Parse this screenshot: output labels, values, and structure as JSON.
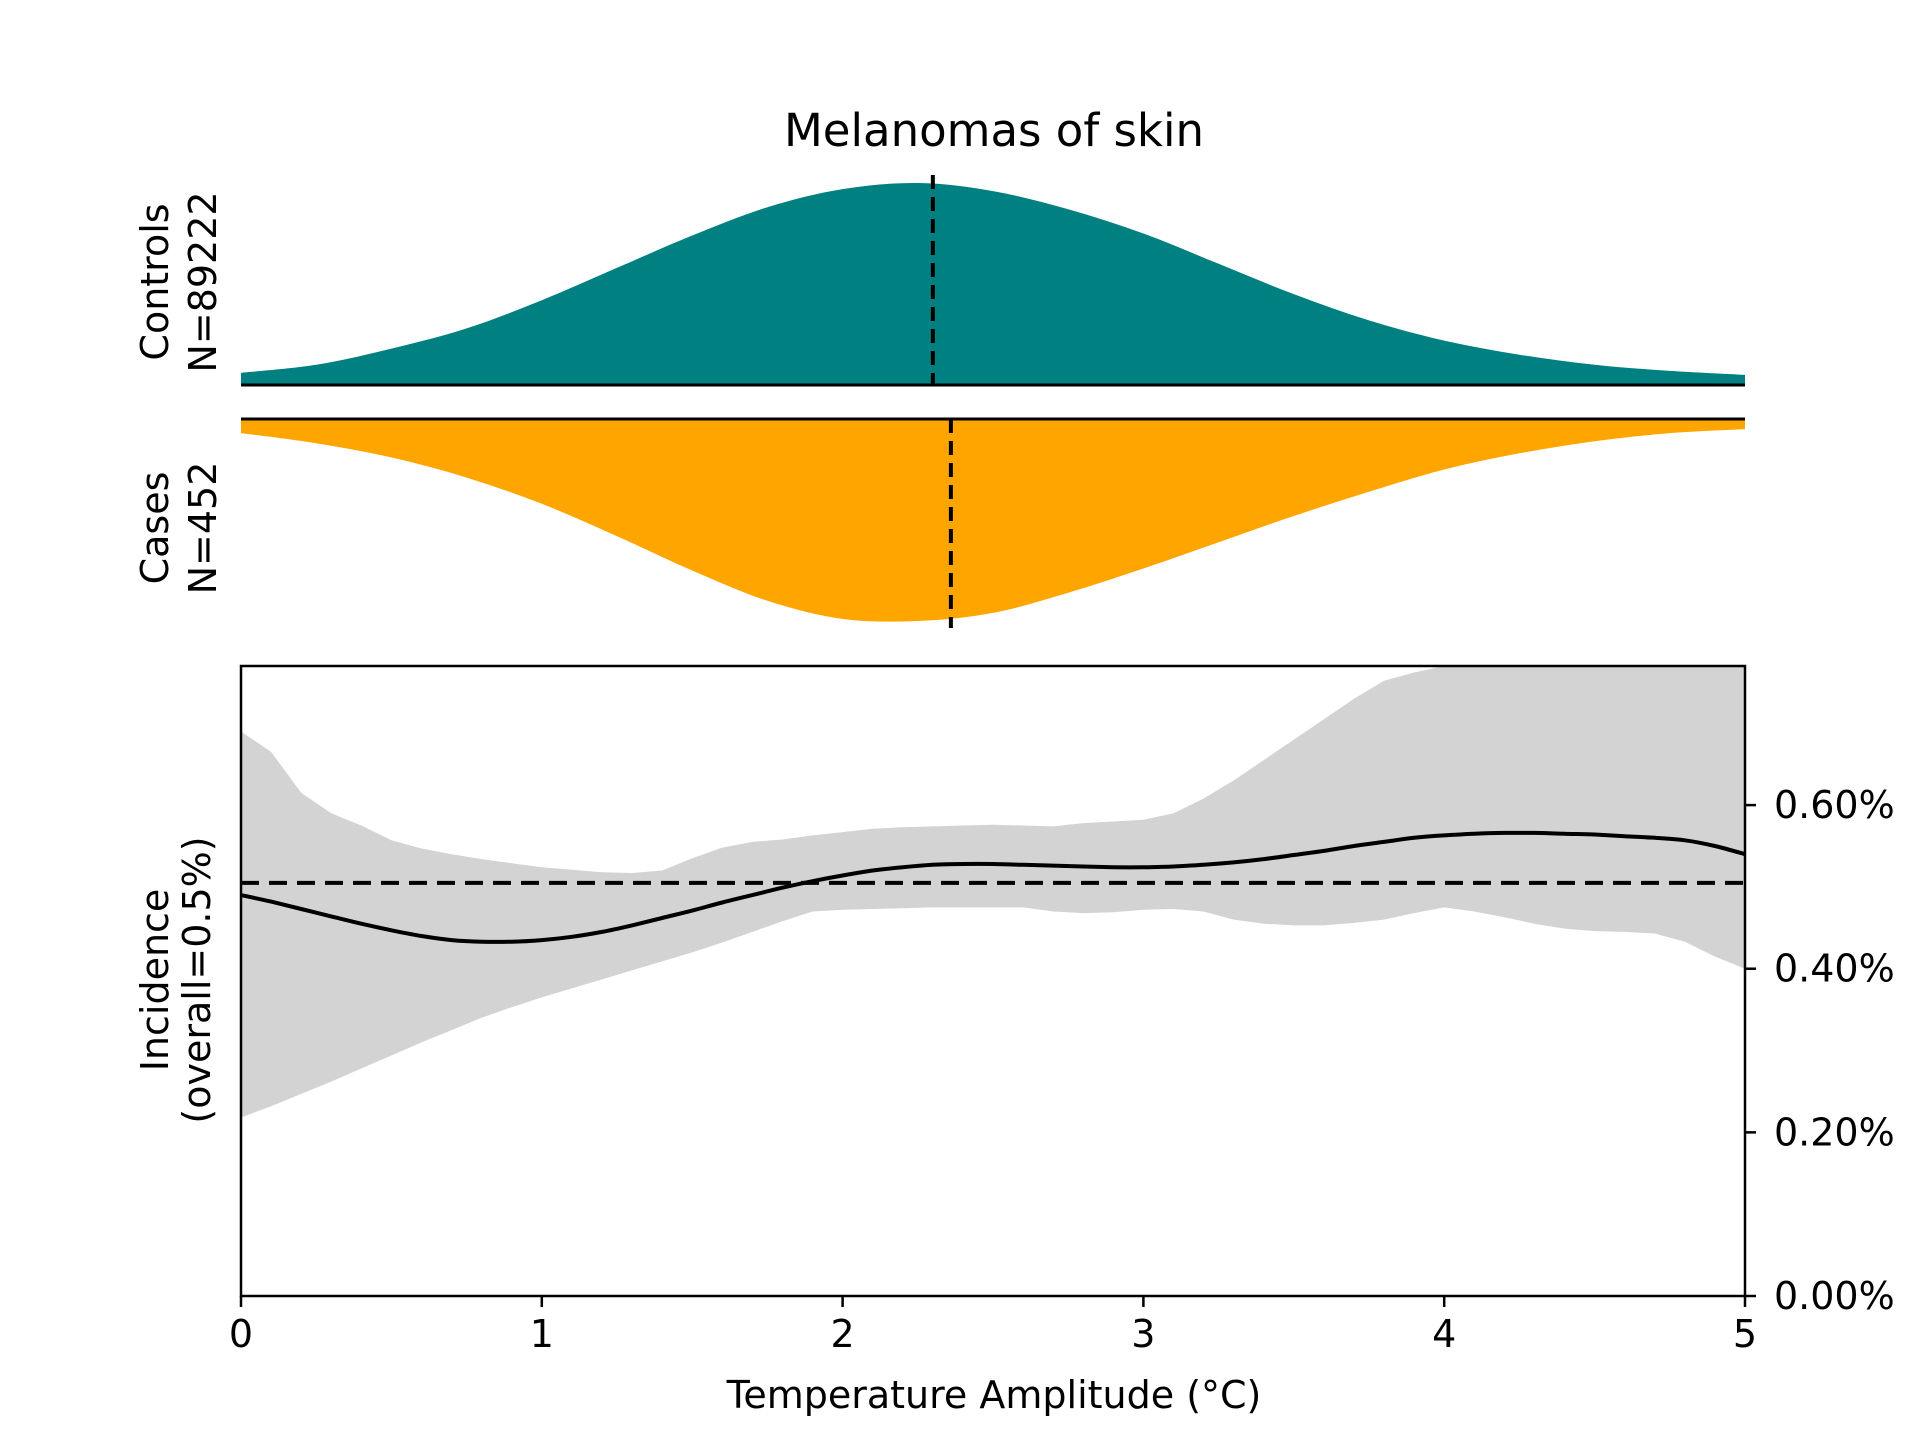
{
  "chart_data": [
    {
      "type": "area",
      "title": "Melanomas of skin",
      "panels": [
        {
          "name": "controls",
          "label_line1": "Controls",
          "label_line2": "N=89222",
          "color": "#008080",
          "direction": "up",
          "median_x": 2.3,
          "density": {
            "x": [
              0,
              0.25,
              0.5,
              0.75,
              1.0,
              1.25,
              1.5,
              1.75,
              2.0,
              2.25,
              2.5,
              2.75,
              3.0,
              3.25,
              3.5,
              3.75,
              4.0,
              4.25,
              4.5,
              4.75,
              5.0
            ],
            "y": [
              0.06,
              0.1,
              0.18,
              0.28,
              0.42,
              0.58,
              0.74,
              0.88,
              0.97,
              1.0,
              0.96,
              0.87,
              0.75,
              0.6,
              0.45,
              0.32,
              0.22,
              0.15,
              0.1,
              0.07,
              0.05
            ]
          }
        },
        {
          "name": "cases",
          "label_line1": "Cases",
          "label_line2": "N=452",
          "color": "#FFA500",
          "direction": "down",
          "median_x": 2.36,
          "density": {
            "x": [
              0,
              0.25,
              0.5,
              0.75,
              1.0,
              1.25,
              1.5,
              1.75,
              2.0,
              2.25,
              2.5,
              2.75,
              3.0,
              3.25,
              3.5,
              3.75,
              4.0,
              4.25,
              4.5,
              4.75,
              5.0
            ],
            "y": [
              0.07,
              0.12,
              0.19,
              0.29,
              0.42,
              0.58,
              0.75,
              0.9,
              0.99,
              1.0,
              0.96,
              0.86,
              0.74,
              0.61,
              0.48,
              0.36,
              0.25,
              0.17,
              0.11,
              0.07,
              0.05
            ]
          }
        }
      ]
    },
    {
      "type": "line",
      "ylabel_line1": "Incidence",
      "ylabel_line2": "(overall=0.5%)",
      "xlabel": "Temperature Amplitude (°C)",
      "xlim": [
        0,
        5
      ],
      "ylim": [
        0,
        0.0077
      ],
      "x_ticks": [
        0,
        1,
        2,
        3,
        4,
        5
      ],
      "x_tick_labels": [
        "0",
        "1",
        "2",
        "3",
        "4",
        "5"
      ],
      "y_ticks": [
        0,
        0.002,
        0.004,
        0.006
      ],
      "y_tick_labels": [
        "0.00%",
        "0.20%",
        "0.40%",
        "0.60%"
      ],
      "y_axis_side": "right",
      "overall_rate": 0.00505,
      "ci_color": "#d3d3d3",
      "line_color": "#000000",
      "x": [
        0,
        0.1,
        0.2,
        0.3,
        0.4,
        0.5,
        0.6,
        0.7,
        0.8,
        0.9,
        1.0,
        1.1,
        1.2,
        1.3,
        1.4,
        1.5,
        1.6,
        1.7,
        1.8,
        1.9,
        2.0,
        2.1,
        2.2,
        2.3,
        2.4,
        2.5,
        2.6,
        2.7,
        2.8,
        2.9,
        3.0,
        3.1,
        3.2,
        3.3,
        3.4,
        3.5,
        3.6,
        3.7,
        3.8,
        3.9,
        4.0,
        4.1,
        4.2,
        4.3,
        4.4,
        4.5,
        4.6,
        4.7,
        4.8,
        4.9,
        5.0
      ],
      "series": [
        {
          "role": "incidence",
          "values": [
            0.0049,
            0.00482,
            0.00473,
            0.00464,
            0.00455,
            0.00447,
            0.0044,
            0.00435,
            0.00433,
            0.00433,
            0.00435,
            0.00439,
            0.00445,
            0.00453,
            0.00462,
            0.00471,
            0.00481,
            0.0049,
            0.00499,
            0.00507,
            0.00514,
            0.0052,
            0.00524,
            0.00527,
            0.00528,
            0.00528,
            0.00527,
            0.00526,
            0.00525,
            0.00524,
            0.00524,
            0.00525,
            0.00527,
            0.0053,
            0.00534,
            0.00539,
            0.00544,
            0.0055,
            0.00555,
            0.0056,
            0.00563,
            0.00565,
            0.00566,
            0.00566,
            0.00565,
            0.00564,
            0.00562,
            0.0056,
            0.00557,
            0.0055,
            0.0054
          ]
        },
        {
          "role": "ci_upper",
          "values": [
            0.0069,
            0.00665,
            0.00615,
            0.0059,
            0.00575,
            0.00557,
            0.00547,
            0.0054,
            0.00534,
            0.00529,
            0.00524,
            0.00521,
            0.00518,
            0.00517,
            0.0052,
            0.00535,
            0.00548,
            0.00555,
            0.00558,
            0.00563,
            0.00567,
            0.00571,
            0.00573,
            0.00574,
            0.00575,
            0.00576,
            0.00575,
            0.00574,
            0.00578,
            0.0058,
            0.00582,
            0.0059,
            0.00608,
            0.0063,
            0.00655,
            0.0068,
            0.00705,
            0.0073,
            0.00752,
            0.00762,
            0.0077,
            0.0077,
            0.0077,
            0.0077,
            0.0077,
            0.0077,
            0.0077,
            0.0077,
            0.0077,
            0.0077,
            0.0077
          ]
        },
        {
          "role": "ci_lower",
          "values": [
            0.00218,
            0.00232,
            0.00247,
            0.00262,
            0.00278,
            0.00294,
            0.0031,
            0.00325,
            0.0034,
            0.00353,
            0.00365,
            0.00376,
            0.00387,
            0.00398,
            0.00409,
            0.0042,
            0.00432,
            0.00445,
            0.00458,
            0.0047,
            0.00472,
            0.00473,
            0.00474,
            0.00475,
            0.00475,
            0.00475,
            0.00475,
            0.0047,
            0.00468,
            0.00469,
            0.00472,
            0.00473,
            0.0047,
            0.0046,
            0.00455,
            0.00453,
            0.00453,
            0.00456,
            0.0046,
            0.00468,
            0.00475,
            0.0047,
            0.00463,
            0.00455,
            0.00449,
            0.00446,
            0.00445,
            0.00443,
            0.00433,
            0.00415,
            0.004
          ]
        }
      ]
    }
  ]
}
